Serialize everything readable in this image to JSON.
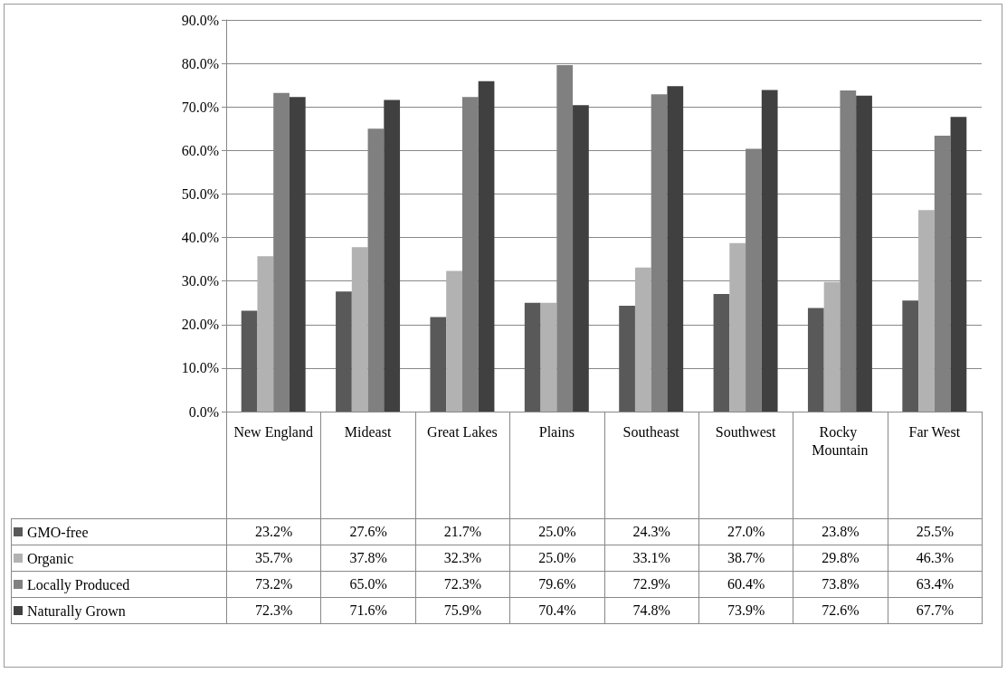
{
  "chart_data": {
    "type": "bar",
    "categories": [
      "New England",
      "Mideast",
      "Great Lakes",
      "Plains",
      "Southeast",
      "Southwest",
      "Rocky Mountain",
      "Far West"
    ],
    "ylim": [
      0,
      90
    ],
    "yticks": [
      {
        "value": 0,
        "label": "0.0%"
      },
      {
        "value": 10,
        "label": "10.0%"
      },
      {
        "value": 20,
        "label": "20.0%"
      },
      {
        "value": 30,
        "label": "30.0%"
      },
      {
        "value": 40,
        "label": "40.0%"
      },
      {
        "value": 50,
        "label": "50.0%"
      },
      {
        "value": 60,
        "label": "60.0%"
      },
      {
        "value": 70,
        "label": "70.0%"
      },
      {
        "value": 80,
        "label": "80.0%"
      },
      {
        "value": 90,
        "label": "90.0%"
      }
    ],
    "grid": "y",
    "legend": "bottom left",
    "series": [
      {
        "name": "GMO-free",
        "color": "#595959",
        "values": [
          23.2,
          27.6,
          21.7,
          25.0,
          24.3,
          27.0,
          23.8,
          25.5
        ],
        "value_labels": [
          "23.2%",
          "27.6%",
          "21.7%",
          "25.0%",
          "24.3%",
          "27.0%",
          "23.8%",
          "25.5%"
        ]
      },
      {
        "name": "Organic",
        "color": "#b2b2b2",
        "values": [
          35.7,
          37.8,
          32.3,
          25.0,
          33.1,
          38.7,
          29.8,
          46.3
        ],
        "value_labels": [
          "35.7%",
          "37.8%",
          "32.3%",
          "25.0%",
          "33.1%",
          "38.7%",
          "29.8%",
          "46.3%"
        ]
      },
      {
        "name": "Locally Produced",
        "color": "#808080",
        "values": [
          73.2,
          65.0,
          72.3,
          79.6,
          72.9,
          60.4,
          73.8,
          63.4
        ],
        "value_labels": [
          "73.2%",
          "65.0%",
          "72.3%",
          "79.6%",
          "72.9%",
          "60.4%",
          "73.8%",
          "63.4%"
        ]
      },
      {
        "name": "Naturally Grown",
        "color": "#404040",
        "values": [
          72.3,
          71.6,
          75.9,
          70.4,
          74.8,
          73.9,
          72.6,
          67.7
        ],
        "value_labels": [
          "72.3%",
          "71.6%",
          "75.9%",
          "70.4%",
          "74.8%",
          "73.9%",
          "72.6%",
          "67.7%"
        ]
      }
    ]
  }
}
